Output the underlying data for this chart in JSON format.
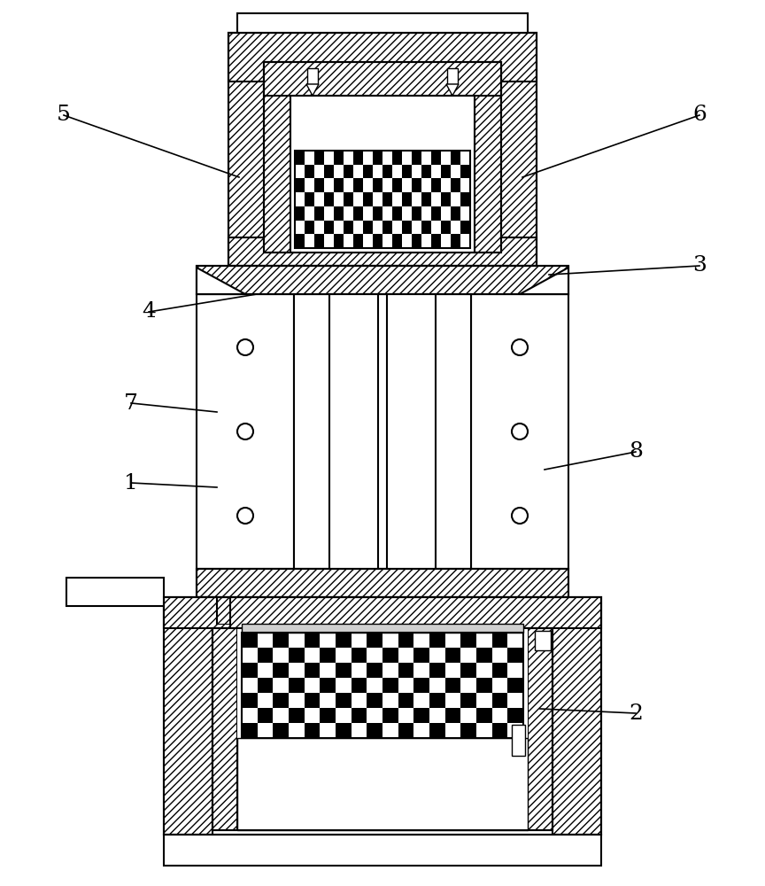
{
  "bg_color": "#ffffff",
  "lw": 1.5,
  "lw_thin": 0.8,
  "hatch_density": "////",
  "checker_black": "#000000",
  "gray_light": "#d0d0d0",
  "gray_med": "#b0b0b0"
}
